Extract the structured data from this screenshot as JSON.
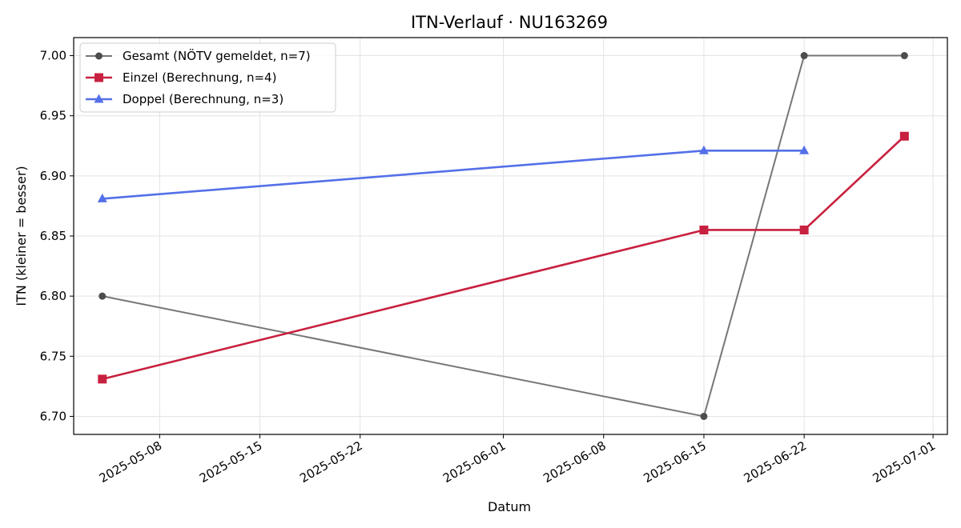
{
  "chart_data": {
    "type": "line",
    "title": "ITN-Verlauf · NU163269",
    "xlabel": "Datum",
    "ylabel": "ITN  (kleiner = besser)",
    "x_type": "date",
    "xlim": [
      "2025-05-02",
      "2025-07-02"
    ],
    "ylim": [
      6.685,
      7.015
    ],
    "x_ticks": [
      "2025-05-08",
      "2025-05-15",
      "2025-05-22",
      "2025-06-01",
      "2025-06-08",
      "2025-06-15",
      "2025-06-22",
      "2025-07-01"
    ],
    "y_ticks": [
      "6.70",
      "6.75",
      "6.80",
      "6.85",
      "6.90",
      "6.95",
      "7.00"
    ],
    "grid": true,
    "legend_position": "top-left",
    "series": [
      {
        "name": "Gesamt (NÖTV gemeldet, n=7)",
        "color": "#777777",
        "marker_color": "#4d4d4d",
        "marker": "circle",
        "points": [
          {
            "x": "2025-05-04",
            "y": 6.8
          },
          {
            "x": "2025-06-15",
            "y": 6.7
          },
          {
            "x": "2025-06-22",
            "y": 7.0
          },
          {
            "x": "2025-06-29",
            "y": 7.0
          }
        ]
      },
      {
        "name": "Einzel (Berechnung, n=4)",
        "color": "#c8213f",
        "marker_color": "#c8213f",
        "marker": "square",
        "points": [
          {
            "x": "2025-05-04",
            "y": 6.731
          },
          {
            "x": "2025-06-15",
            "y": 6.855
          },
          {
            "x": "2025-06-22",
            "y": 6.855
          },
          {
            "x": "2025-06-29",
            "y": 6.933
          }
        ]
      },
      {
        "name": "Doppel (Berechnung, n=3)",
        "color": "#5470e8",
        "marker_color": "#5470e8",
        "marker": "triangle",
        "points": [
          {
            "x": "2025-05-04",
            "y": 6.881
          },
          {
            "x": "2025-06-15",
            "y": 6.921
          },
          {
            "x": "2025-06-22",
            "y": 6.921
          }
        ]
      }
    ]
  }
}
